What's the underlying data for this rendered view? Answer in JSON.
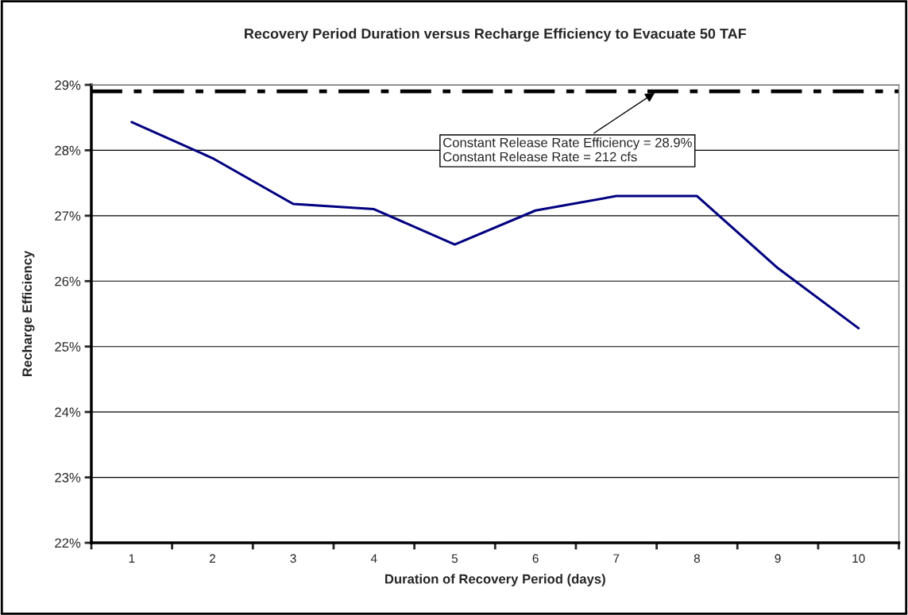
{
  "chart_data": {
    "type": "line",
    "title": "Recovery Period Duration versus Recharge Efficiency to Evacuate 50 TAF",
    "xlabel": "Duration of Recovery Period (days)",
    "ylabel": "Recharge Efficiency",
    "categories": [
      "1",
      "2",
      "3",
      "4",
      "5",
      "6",
      "7",
      "8",
      "9",
      "10"
    ],
    "series": [
      {
        "color": "#000080",
        "values": [
          28.43,
          27.88,
          27.18,
          27.1,
          26.56,
          27.08,
          27.3,
          27.3,
          26.2,
          25.28
        ]
      }
    ],
    "ylim": [
      22,
      29
    ],
    "yticks": [
      {
        "value": 22,
        "label": "22%"
      },
      {
        "value": 23,
        "label": "23%"
      },
      {
        "value": 24,
        "label": "24%"
      },
      {
        "value": 25,
        "label": "25%"
      },
      {
        "value": 26,
        "label": "26%"
      },
      {
        "value": 27,
        "label": "27%"
      },
      {
        "value": 28,
        "label": "28%"
      },
      {
        "value": 29,
        "label": "29%"
      }
    ],
    "grid": "y",
    "marker": "none",
    "line_style": "solid",
    "ref_lines": [
      {
        "axis": "y",
        "value": 28.9,
        "color": "#000000",
        "line_style": "dashdot",
        "label": "Constant Release Rate Efficiency = 28.9%\nConstant Release Rate = 212 cfs"
      }
    ]
  }
}
